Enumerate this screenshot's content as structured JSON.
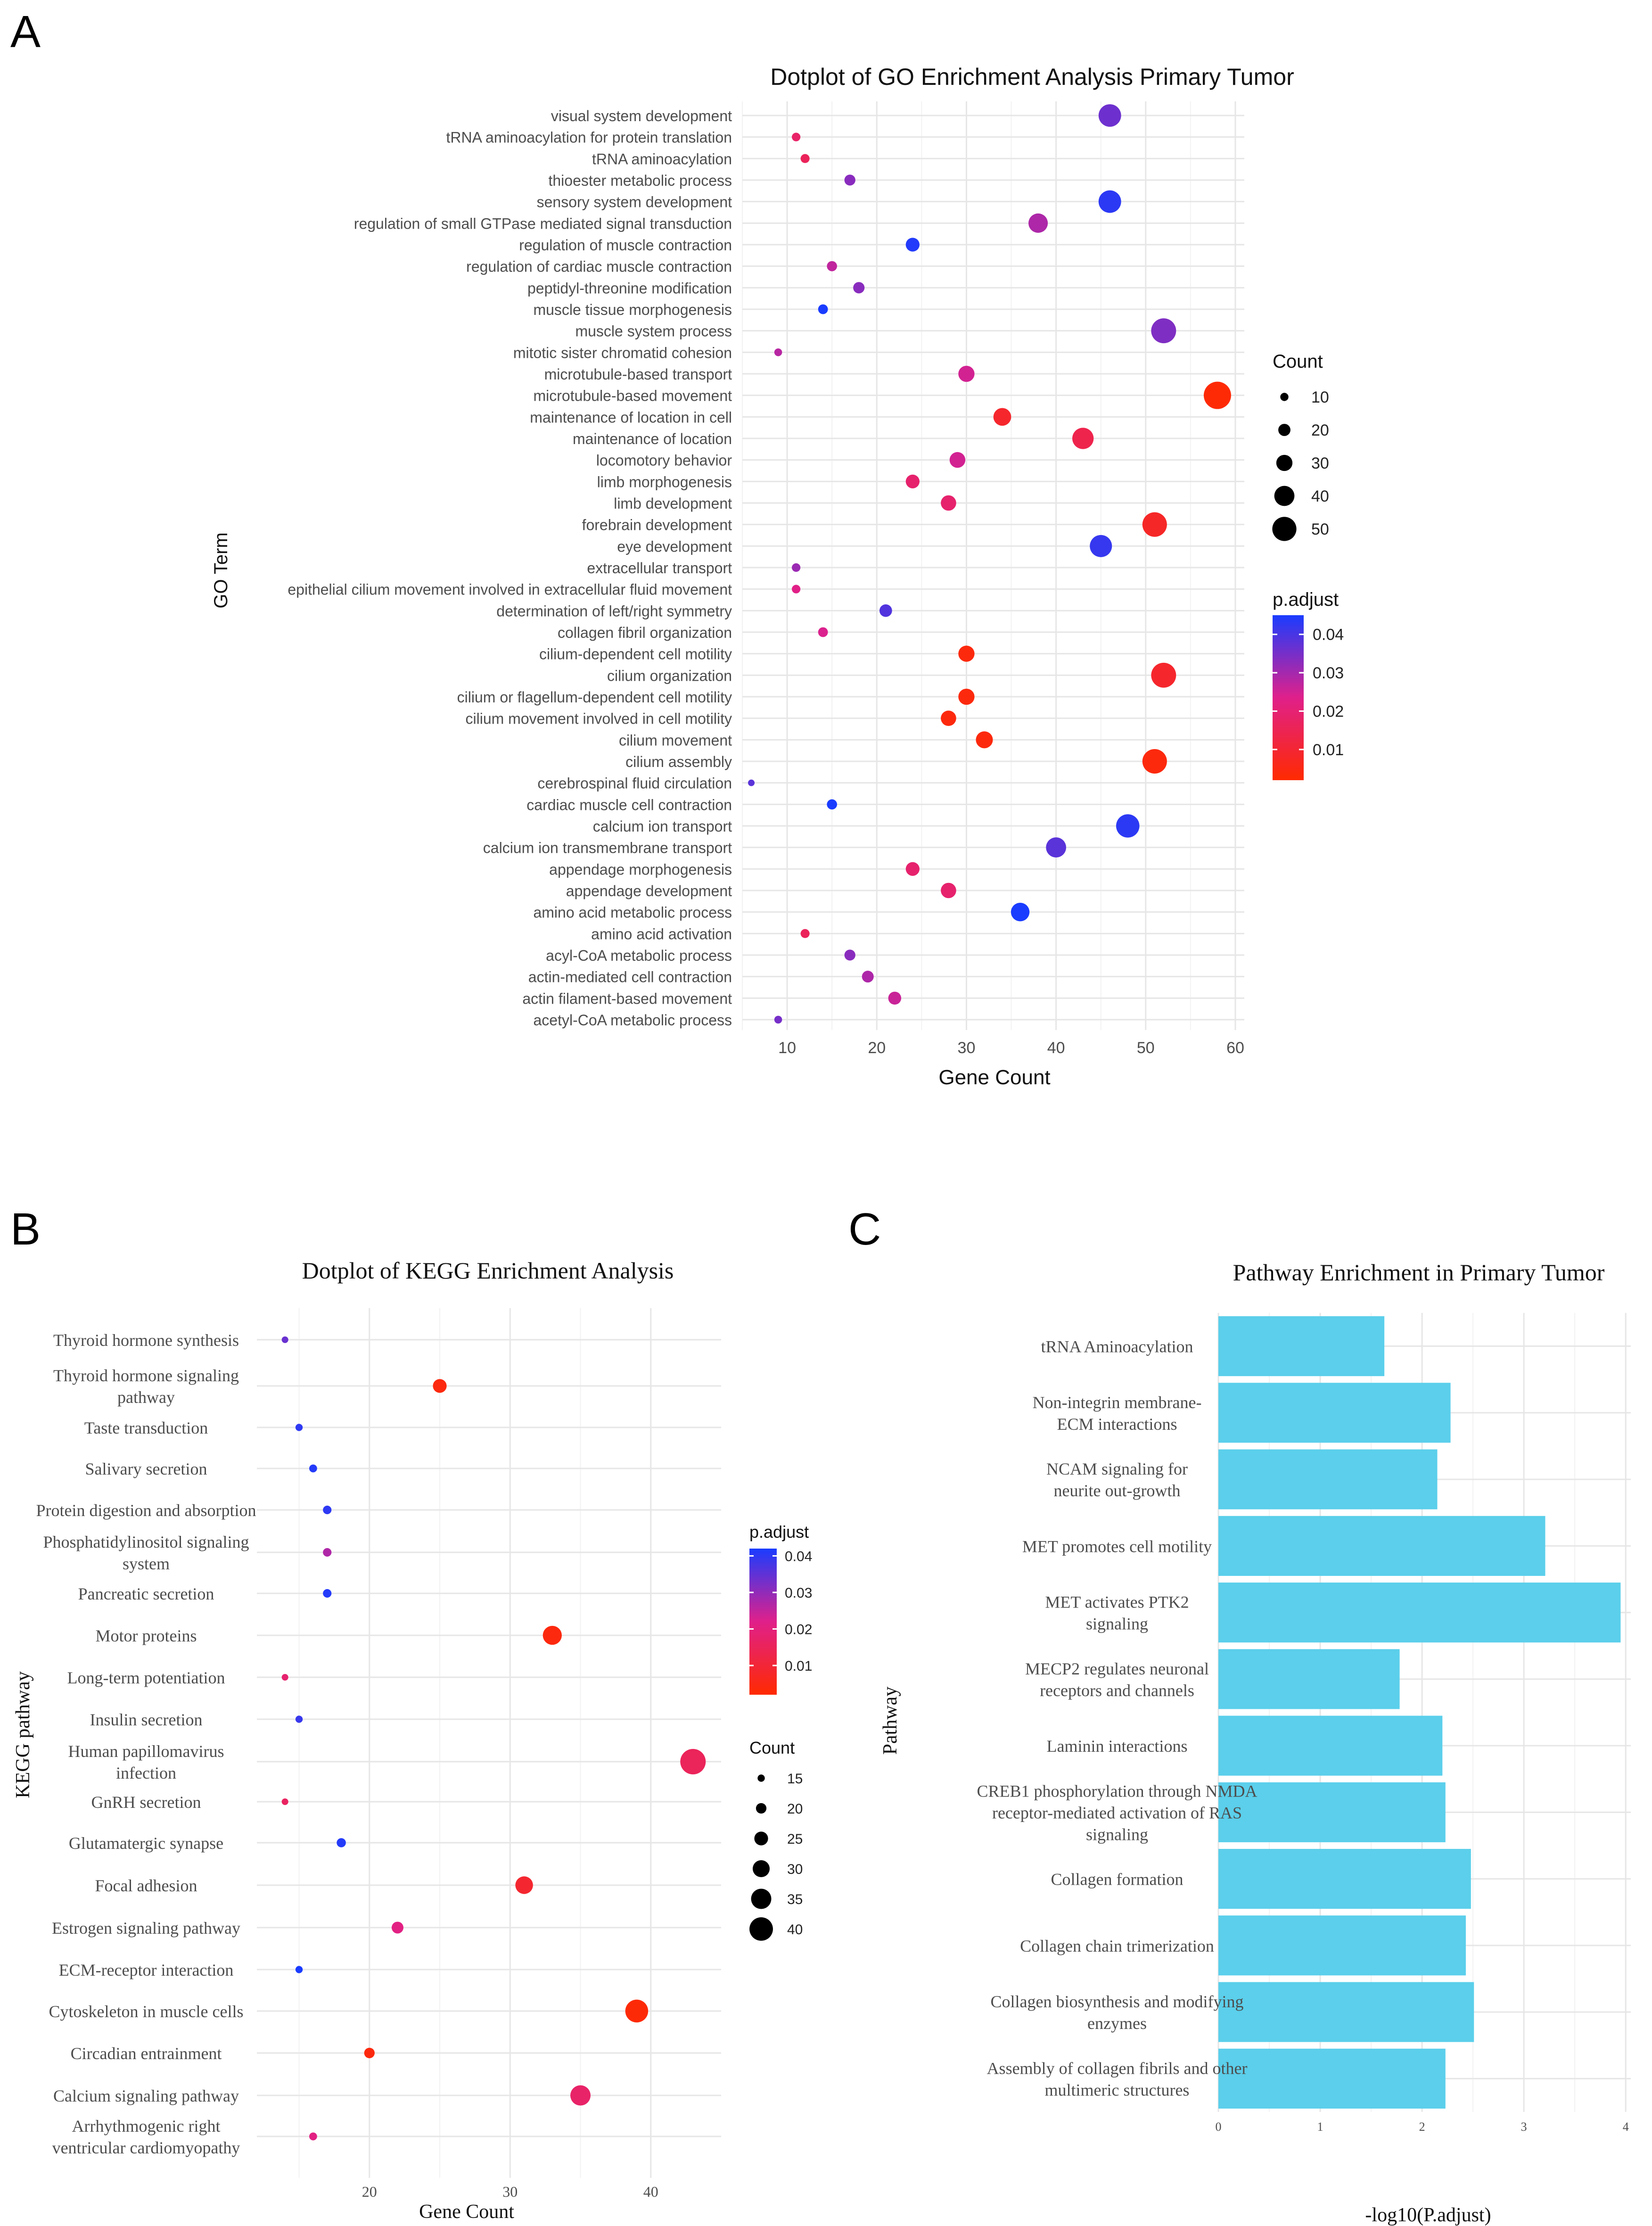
{
  "figure": {
    "panel_labels": [
      "A",
      "B",
      "C"
    ]
  },
  "chart_data": [
    {
      "panel": "A",
      "type": "scatter",
      "title": "Dotplot of GO Enrichment Analysis Primary Tumor",
      "xlabel": "Gene Count",
      "ylabel": "GO Term",
      "xlim": [
        5,
        61
      ],
      "xticks": [
        10,
        20,
        30,
        40,
        50,
        60
      ],
      "size_legend": {
        "title": "Count",
        "values": [
          10,
          20,
          30,
          40,
          50
        ]
      },
      "color_legend": {
        "title": "p.adjust",
        "ticks": [
          0.04,
          0.03,
          0.02,
          0.01
        ],
        "range": [
          0.002,
          0.045
        ],
        "low_color": "#ff2a00",
        "mid_color": "#e0208a",
        "high_color": "#1a3cff"
      },
      "points": [
        {
          "term": "visual system development",
          "count": 46,
          "padj": 0.036
        },
        {
          "term": "tRNA aminoacylation for protein translation",
          "count": 11,
          "padj": 0.018
        },
        {
          "term": "tRNA aminoacylation",
          "count": 12,
          "padj": 0.016
        },
        {
          "term": "thioester metabolic process",
          "count": 17,
          "padj": 0.033
        },
        {
          "term": "sensory system development",
          "count": 46,
          "padj": 0.043
        },
        {
          "term": "regulation of small GTPase mediated signal transduction",
          "count": 38,
          "padj": 0.029
        },
        {
          "term": "regulation of muscle contraction",
          "count": 24,
          "padj": 0.044
        },
        {
          "term": "regulation of cardiac muscle contraction",
          "count": 15,
          "padj": 0.027
        },
        {
          "term": "peptidyl-threonine modification",
          "count": 18,
          "padj": 0.033
        },
        {
          "term": "muscle tissue morphogenesis",
          "count": 14,
          "padj": 0.045
        },
        {
          "term": "muscle system process",
          "count": 52,
          "padj": 0.034
        },
        {
          "term": "mitotic sister chromatid cohesion",
          "count": 9,
          "padj": 0.028
        },
        {
          "term": "microtubule-based transport",
          "count": 30,
          "padj": 0.025
        },
        {
          "term": "microtubule-based movement",
          "count": 58,
          "padj": 0.003
        },
        {
          "term": "maintenance of location in cell",
          "count": 34,
          "padj": 0.009
        },
        {
          "term": "maintenance of location",
          "count": 43,
          "padj": 0.014
        },
        {
          "term": "locomotory behavior",
          "count": 29,
          "padj": 0.025
        },
        {
          "term": "limb morphogenesis",
          "count": 24,
          "padj": 0.019
        },
        {
          "term": "limb development",
          "count": 28,
          "padj": 0.019
        },
        {
          "term": "forebrain development",
          "count": 51,
          "padj": 0.008
        },
        {
          "term": "eye development",
          "count": 45,
          "padj": 0.042
        },
        {
          "term": "extracellular transport",
          "count": 11,
          "padj": 0.031
        },
        {
          "term": "epithelial cilium movement involved in extracellular fluid movement",
          "count": 11,
          "padj": 0.023
        },
        {
          "term": "determination of left/right symmetry",
          "count": 21,
          "padj": 0.039
        },
        {
          "term": "collagen fibril organization",
          "count": 14,
          "padj": 0.024
        },
        {
          "term": "cilium-dependent cell motility",
          "count": 30,
          "padj": 0.004
        },
        {
          "term": "cilium organization",
          "count": 52,
          "padj": 0.009
        },
        {
          "term": "cilium or flagellum-dependent cell motility",
          "count": 30,
          "padj": 0.004
        },
        {
          "term": "cilium movement involved in cell motility",
          "count": 28,
          "padj": 0.004
        },
        {
          "term": "cilium movement",
          "count": 32,
          "padj": 0.004
        },
        {
          "term": "cilium assembly",
          "count": 51,
          "padj": 0.004
        },
        {
          "term": "cerebrospinal fluid circulation",
          "count": 6,
          "padj": 0.038
        },
        {
          "term": "cardiac muscle cell contraction",
          "count": 15,
          "padj": 0.045
        },
        {
          "term": "calcium ion transport",
          "count": 48,
          "padj": 0.043
        },
        {
          "term": "calcium ion transmembrane transport",
          "count": 40,
          "padj": 0.038
        },
        {
          "term": "appendage morphogenesis",
          "count": 24,
          "padj": 0.019
        },
        {
          "term": "appendage development",
          "count": 28,
          "padj": 0.019
        },
        {
          "term": "amino acid metabolic process",
          "count": 36,
          "padj": 0.045
        },
        {
          "term": "amino acid activation",
          "count": 12,
          "padj": 0.016
        },
        {
          "term": "acyl-CoA metabolic process",
          "count": 17,
          "padj": 0.033
        },
        {
          "term": "actin-mediated cell contraction",
          "count": 19,
          "padj": 0.029
        },
        {
          "term": "actin filament-based movement",
          "count": 22,
          "padj": 0.026
        },
        {
          "term": "acetyl-CoA metabolic process",
          "count": 9,
          "padj": 0.035
        }
      ]
    },
    {
      "panel": "B",
      "type": "scatter",
      "title": "Dotplot of KEGG Enrichment Analysis",
      "xlabel": "Gene Count",
      "ylabel": "KEGG pathway",
      "xlim": [
        12,
        45
      ],
      "xticks": [
        20,
        30,
        40
      ],
      "size_legend": {
        "title": "Count",
        "values": [
          15,
          20,
          25,
          30,
          35,
          40
        ]
      },
      "color_legend": {
        "title": "p.adjust",
        "ticks": [
          0.04,
          0.03,
          0.02,
          0.01
        ],
        "range": [
          0.002,
          0.042
        ],
        "low_color": "#ff2a00",
        "mid_color": "#e0208a",
        "high_color": "#1a3cff"
      },
      "points": [
        {
          "lines": [
            "Thyroid hormone synthesis"
          ],
          "count": 14,
          "padj": 0.034
        },
        {
          "lines": [
            "Thyroid hormone signaling",
            "pathway"
          ],
          "count": 25,
          "padj": 0.004
        },
        {
          "lines": [
            "Taste transduction"
          ],
          "count": 15,
          "padj": 0.04
        },
        {
          "lines": [
            "Salivary secretion"
          ],
          "count": 16,
          "padj": 0.041
        },
        {
          "lines": [
            "Protein digestion and absorption"
          ],
          "count": 17,
          "padj": 0.04
        },
        {
          "lines": [
            "Phosphatidylinositol signaling",
            "system"
          ],
          "count": 17,
          "padj": 0.027
        },
        {
          "lines": [
            "Pancreatic secretion"
          ],
          "count": 17,
          "padj": 0.041
        },
        {
          "lines": [
            "Motor proteins"
          ],
          "count": 33,
          "padj": 0.004
        },
        {
          "lines": [
            "Long-term potentiation"
          ],
          "count": 14,
          "padj": 0.018
        },
        {
          "lines": [
            "Insulin secretion"
          ],
          "count": 15,
          "padj": 0.039
        },
        {
          "lines": [
            "Human papillomavirus",
            "infection"
          ],
          "count": 43,
          "padj": 0.015
        },
        {
          "lines": [
            "GnRH secretion"
          ],
          "count": 14,
          "padj": 0.016
        },
        {
          "lines": [
            "Glutamatergic synapse"
          ],
          "count": 18,
          "padj": 0.041
        },
        {
          "lines": [
            "Focal adhesion"
          ],
          "count": 31,
          "padj": 0.009
        },
        {
          "lines": [
            "Estrogen signaling pathway"
          ],
          "count": 22,
          "padj": 0.021
        },
        {
          "lines": [
            "ECM-receptor interaction"
          ],
          "count": 15,
          "padj": 0.043
        },
        {
          "lines": [
            "Cytoskeleton in muscle cells"
          ],
          "count": 39,
          "padj": 0.003
        },
        {
          "lines": [
            "Circadian entrainment"
          ],
          "count": 20,
          "padj": 0.004
        },
        {
          "lines": [
            "Calcium signaling pathway"
          ],
          "count": 35,
          "padj": 0.017
        },
        {
          "lines": [
            "Arrhythmogenic right",
            "ventricular cardiomyopathy"
          ],
          "count": 16,
          "padj": 0.021
        }
      ]
    },
    {
      "panel": "C",
      "type": "bar",
      "orientation": "horizontal",
      "title": "Pathway Enrichment in Primary Tumor",
      "xlabel": "-log10(P.adjust)",
      "ylabel": "Pathway",
      "xlim": [
        0,
        4.05
      ],
      "xticks": [
        0,
        1,
        2,
        3,
        4
      ],
      "bar_color": "#5bcfeb",
      "bars": [
        {
          "lines": [
            "tRNA Aminoacylation"
          ],
          "value": 1.63
        },
        {
          "lines": [
            "Non-integrin membrane-",
            "ECM interactions"
          ],
          "value": 2.28
        },
        {
          "lines": [
            "NCAM signaling for",
            "neurite out-growth"
          ],
          "value": 2.15
        },
        {
          "lines": [
            "MET promotes cell motility"
          ],
          "value": 3.21
        },
        {
          "lines": [
            "MET activates PTK2",
            "signaling"
          ],
          "value": 3.95
        },
        {
          "lines": [
            "MECP2 regulates neuronal",
            "receptors and channels"
          ],
          "value": 1.78
        },
        {
          "lines": [
            "Laminin interactions"
          ],
          "value": 2.2
        },
        {
          "lines": [
            "CREB1 phosphorylation through NMDA",
            "receptor-mediated activation of RAS",
            "signaling"
          ],
          "value": 2.23
        },
        {
          "lines": [
            "Collagen formation"
          ],
          "value": 2.48
        },
        {
          "lines": [
            "Collagen chain trimerization"
          ],
          "value": 2.43
        },
        {
          "lines": [
            "Collagen biosynthesis and modifying",
            "enzymes"
          ],
          "value": 2.51
        },
        {
          "lines": [
            "Assembly of collagen fibrils and other",
            "multimeric structures"
          ],
          "value": 2.23
        }
      ]
    }
  ]
}
